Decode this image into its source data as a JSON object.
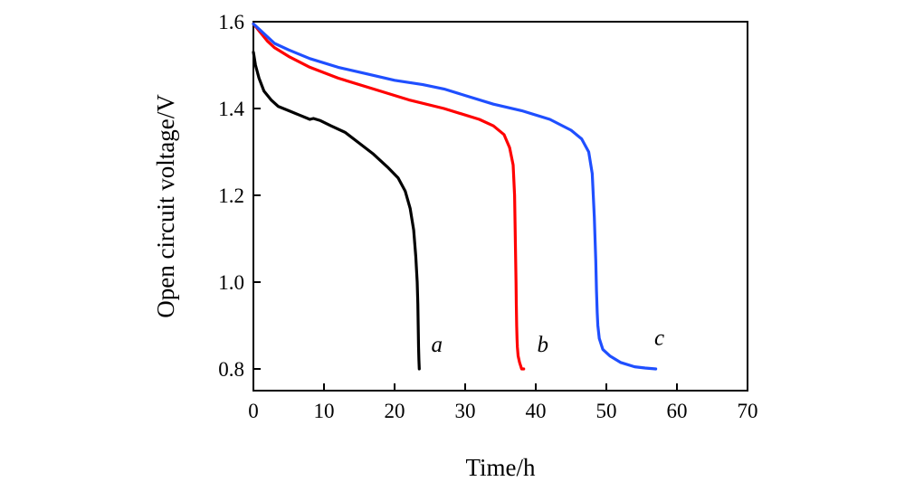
{
  "chart_data": {
    "type": "line",
    "title": "",
    "xlabel": "Time/h",
    "ylabel": "Open circuit voltage/V",
    "xlim": [
      0,
      70
    ],
    "ylim": [
      0.75,
      1.6
    ],
    "xticks": [
      0,
      10,
      20,
      30,
      40,
      50,
      60,
      70
    ],
    "yticks": [
      0.8,
      1.0,
      1.2,
      1.4,
      1.6
    ],
    "xtick_labels": [
      "0",
      "10",
      "20",
      "30",
      "40",
      "50",
      "60",
      "70"
    ],
    "ytick_labels": [
      "0.8",
      "1.0",
      "1.2",
      "1.4",
      "1.6"
    ],
    "grid": false,
    "legend": "none",
    "series": [
      {
        "name": "a",
        "color": "#000000",
        "label_at": [
          26.0,
          0.84
        ],
        "x": [
          0,
          0.3,
          0.8,
          1.5,
          2.5,
          3.5,
          5,
          6.5,
          8,
          8.5,
          9.5,
          11,
          13,
          15,
          17,
          19,
          20.5,
          21.5,
          22.2,
          22.7,
          23.0,
          23.2,
          23.3,
          23.35,
          23.4,
          23.45,
          23.5
        ],
        "y": [
          1.53,
          1.5,
          1.47,
          1.44,
          1.42,
          1.405,
          1.395,
          1.385,
          1.375,
          1.377,
          1.372,
          1.36,
          1.345,
          1.32,
          1.295,
          1.265,
          1.24,
          1.21,
          1.17,
          1.12,
          1.06,
          1.0,
          0.95,
          0.9,
          0.85,
          0.82,
          0.8
        ]
      },
      {
        "name": "b",
        "color": "#ff0000",
        "label_at": [
          41.0,
          0.84
        ],
        "x": [
          0,
          1,
          2,
          3,
          5,
          8,
          12,
          17,
          22,
          27,
          32,
          34,
          35.5,
          36.3,
          36.8,
          37.0,
          37.1,
          37.2,
          37.25,
          37.3,
          37.35,
          37.4,
          37.5,
          37.7,
          38.0,
          38.3
        ],
        "y": [
          1.595,
          1.575,
          1.555,
          1.54,
          1.52,
          1.495,
          1.47,
          1.445,
          1.42,
          1.4,
          1.375,
          1.36,
          1.34,
          1.31,
          1.27,
          1.2,
          1.1,
          1.0,
          0.95,
          0.9,
          0.87,
          0.85,
          0.83,
          0.815,
          0.8,
          0.8
        ]
      },
      {
        "name": "c",
        "color": "#1f4fff",
        "label_at": [
          57.5,
          0.855
        ],
        "x": [
          0,
          1,
          2,
          3,
          5,
          8,
          12,
          16,
          20,
          24,
          27,
          30,
          34,
          38,
          42,
          45,
          46.5,
          47.5,
          48.0,
          48.3,
          48.5,
          48.6,
          48.7,
          48.8,
          49.0,
          49.5,
          50.5,
          52,
          54,
          55.5,
          57.0
        ],
        "y": [
          1.595,
          1.58,
          1.565,
          1.55,
          1.535,
          1.515,
          1.495,
          1.48,
          1.465,
          1.455,
          1.445,
          1.43,
          1.41,
          1.395,
          1.375,
          1.35,
          1.33,
          1.3,
          1.25,
          1.15,
          1.05,
          0.98,
          0.93,
          0.9,
          0.87,
          0.845,
          0.83,
          0.815,
          0.805,
          0.802,
          0.8
        ]
      }
    ]
  }
}
